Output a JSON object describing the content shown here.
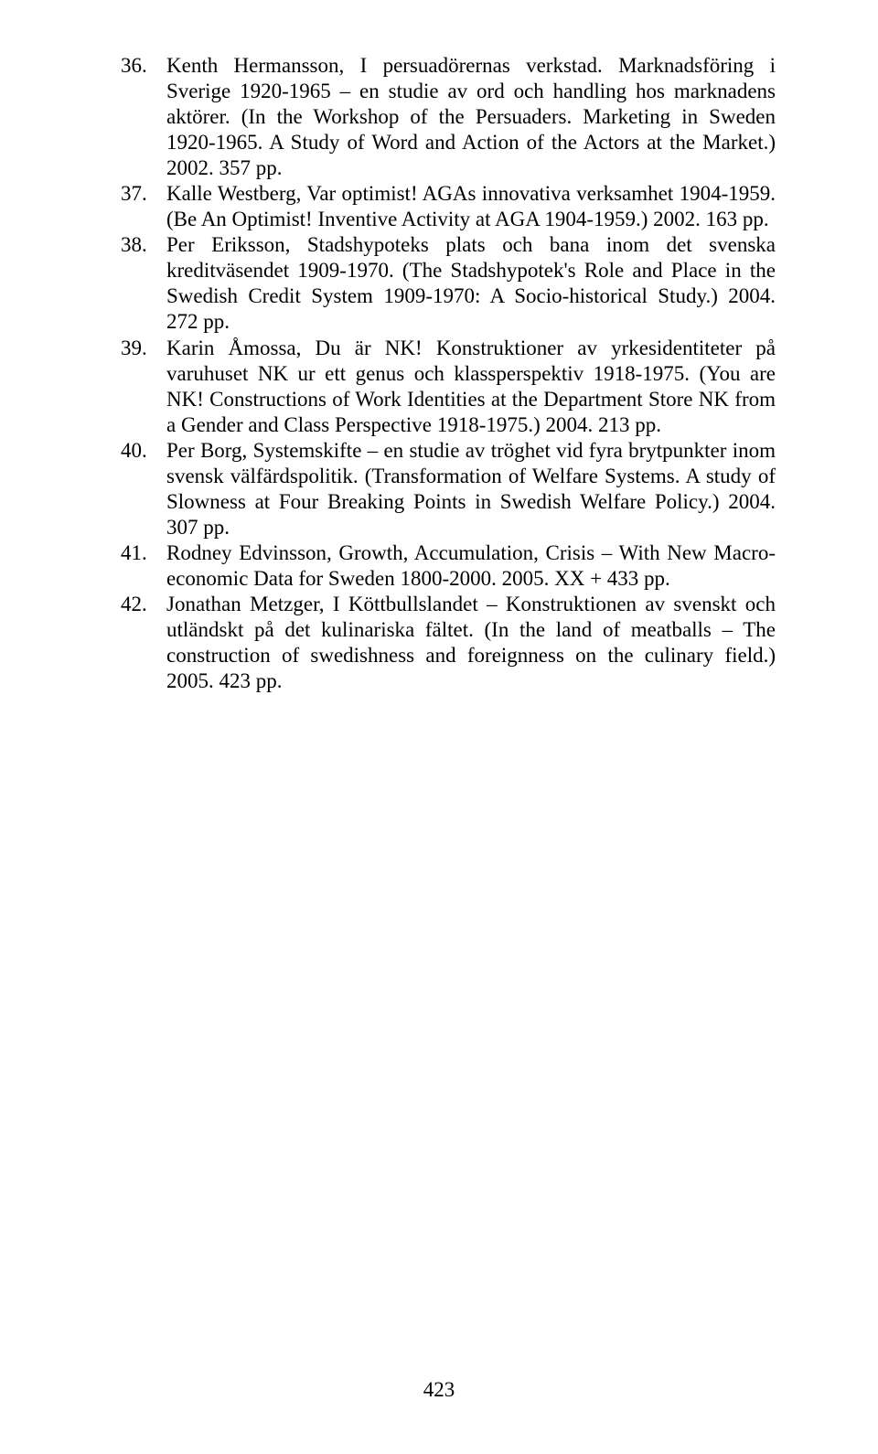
{
  "entries": [
    {
      "num": "36.",
      "text": "Kenth Hermansson, I persuadörernas verkstad. Marknadsföring i Sverige 1920-1965 – en studie av ord och handling hos marknadens aktörer. (In the Workshop of the Persuaders. Marketing in Sweden 1920-1965. A Study of Word and Action of the Actors at the Market.) 2002. 357 pp."
    },
    {
      "num": "37.",
      "text": "Kalle Westberg, Var optimist! AGAs innovativa verksamhet 1904-1959. (Be An Optimist! Inventive Activity at AGA 1904-1959.) 2002. 163 pp."
    },
    {
      "num": "38.",
      "text": "Per Eriksson, Stadshypoteks plats och bana inom det svenska kreditväsendet 1909-1970. (The Stadshypotek's Role and Place in the Swedish Credit System 1909-1970: A Socio-historical Study.) 2004. 272 pp."
    },
    {
      "num": "39.",
      "text": "Karin Åmossa, Du är NK! Konstruktioner av yrkesidentiteter på varuhuset NK ur ett genus och klassperspektiv 1918-1975. (You are NK! Constructions of Work Identities at the Department Store NK from a Gender and Class Perspective 1918-1975.) 2004. 213 pp."
    },
    {
      "num": "40.",
      "text": "Per Borg, Systemskifte – en studie av tröghet vid fyra brytpunkter inom svensk välfärdspolitik. (Transformation of Welfare Systems. A study of Slowness at Four Breaking Points in Swedish Welfare Policy.) 2004. 307 pp."
    },
    {
      "num": "41.",
      "text": "Rodney Edvinsson, Growth, Accumulation, Crisis – With New Macro-economic Data for Sweden 1800-2000. 2005. XX + 433 pp."
    },
    {
      "num": "42.",
      "text": "Jonathan Metzger, I Köttbullslandet – Konstruktionen av svenskt och utländskt på det kulinariska fältet. (In the land of meatballs – The construction of swedishness and foreignness on the culinary field.) 2005. 423 pp."
    }
  ],
  "pageNumber": "423"
}
